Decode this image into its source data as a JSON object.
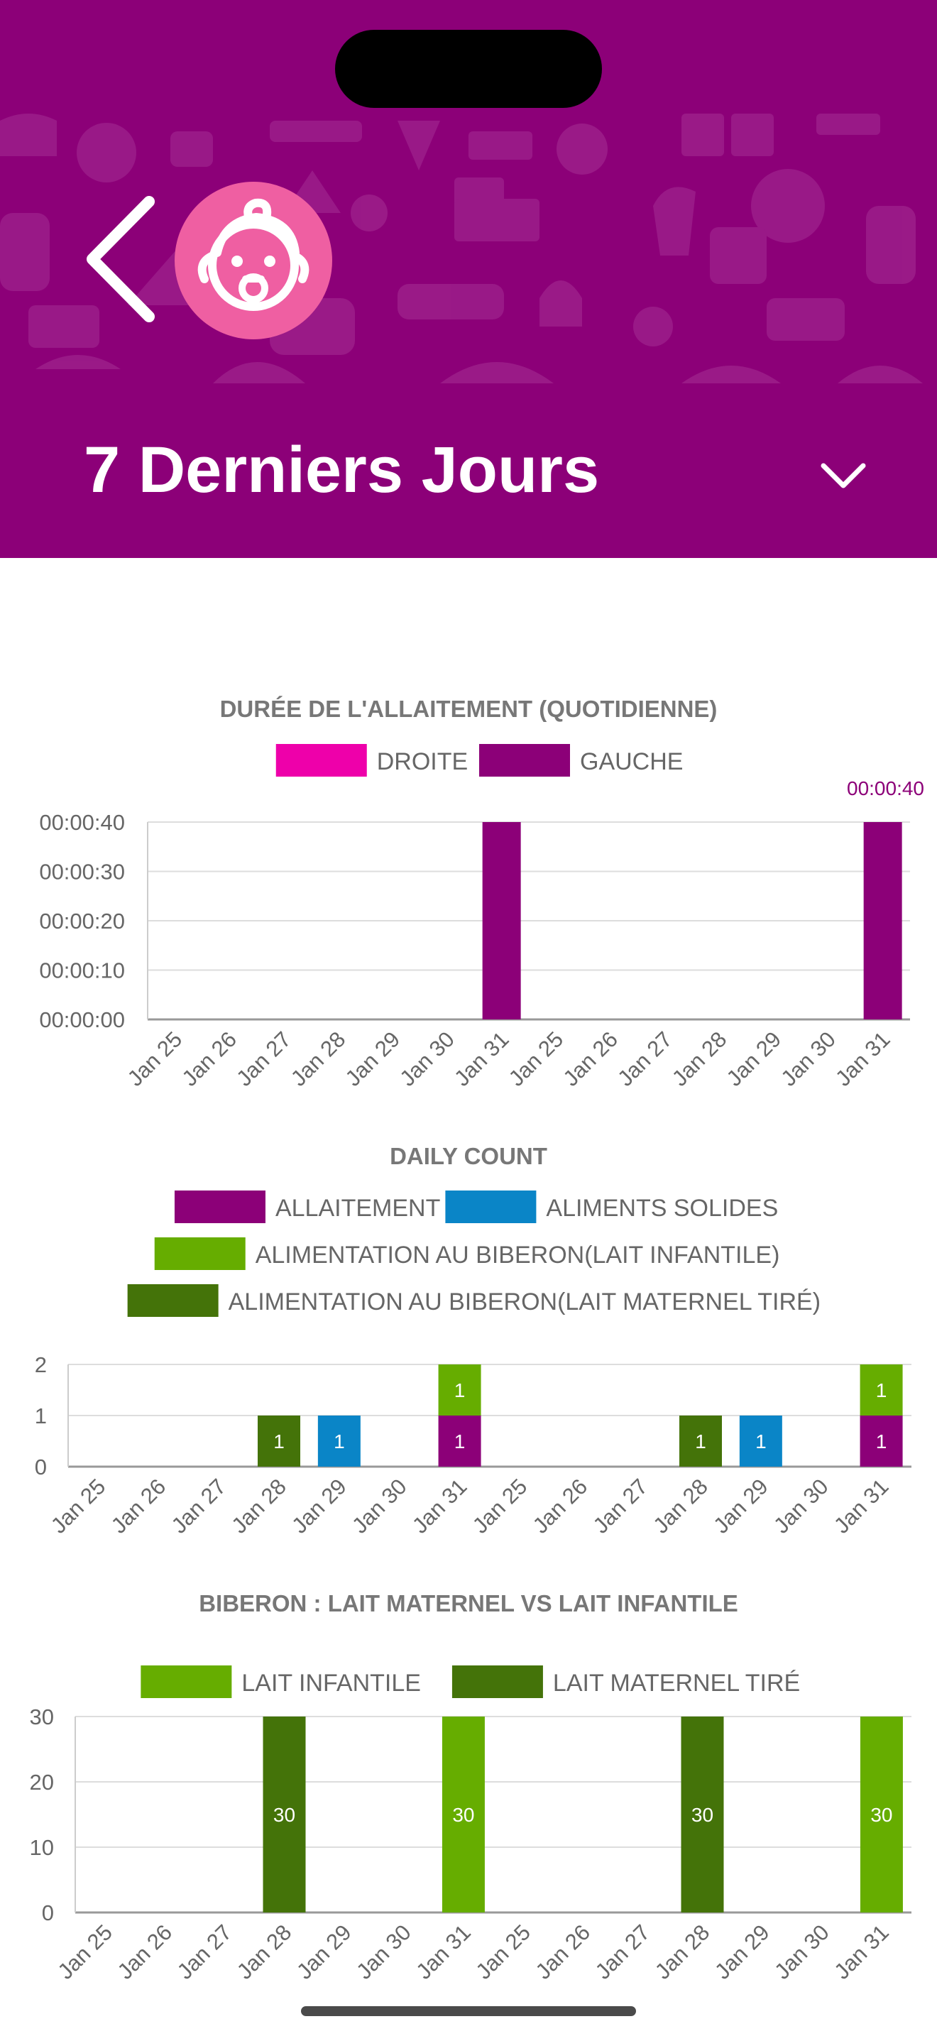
{
  "header": {
    "title": "7 Derniers Jours",
    "back_icon": "chevron-left-icon",
    "avatar_icon": "baby-face-icon",
    "dropdown_icon": "chevron-down-icon",
    "background_color": "#8c0078",
    "avatar_color": "#ef5fa2"
  },
  "charts": [
    {
      "title": "DURÉE DE L'ALLAITEMENT (QUOTIDIENNE)",
      "tooltip": "00:00:40"
    },
    {
      "title": "DAILY COUNT"
    },
    {
      "title": "BIBERON : LAIT MATERNEL VS LAIT INFANTILE"
    }
  ],
  "chart_data": [
    {
      "type": "bar",
      "title": "DURÉE DE L'ALLAITEMENT (QUOTIDIENNE)",
      "categories": [
        "Jan 25",
        "Jan 26",
        "Jan 27",
        "Jan 28",
        "Jan 29",
        "Jan 30",
        "Jan 31",
        "Jan 25",
        "Jan 26",
        "Jan 27",
        "Jan 28",
        "Jan 29",
        "Jan 30",
        "Jan 31"
      ],
      "series": [
        {
          "name": "DROITE",
          "color": "#ee00aa",
          "values": [
            0,
            0,
            0,
            0,
            0,
            0,
            0,
            0,
            0,
            0,
            0,
            0,
            0,
            0
          ]
        },
        {
          "name": "GAUCHE",
          "color": "#8c0078",
          "values": [
            0,
            0,
            0,
            0,
            0,
            0,
            40,
            0,
            0,
            0,
            0,
            0,
            0,
            40
          ]
        }
      ],
      "y_ticks": [
        "00:00:00",
        "00:00:10",
        "00:00:20",
        "00:00:30",
        "00:00:40"
      ],
      "ylim": [
        0,
        40
      ],
      "y_unit": "seconds",
      "legend": "top",
      "grid": true,
      "tooltip": "00:00:40"
    },
    {
      "type": "bar",
      "title": "DAILY COUNT",
      "stacked": true,
      "categories": [
        "Jan 25",
        "Jan 26",
        "Jan 27",
        "Jan 28",
        "Jan 29",
        "Jan 30",
        "Jan 31",
        "Jan 25",
        "Jan 26",
        "Jan 27",
        "Jan 28",
        "Jan 29",
        "Jan 30",
        "Jan 31"
      ],
      "series": [
        {
          "name": "ALLAITEMENT",
          "color": "#8c0078",
          "values": [
            0,
            0,
            0,
            0,
            0,
            0,
            1,
            0,
            0,
            0,
            0,
            0,
            0,
            1
          ]
        },
        {
          "name": "ALIMENTS SOLIDES",
          "color": "#0a85c7",
          "values": [
            0,
            0,
            0,
            0,
            1,
            0,
            0,
            0,
            0,
            0,
            0,
            1,
            0,
            0
          ]
        },
        {
          "name": "ALIMENTATION AU BIBERON(LAIT INFANTILE)",
          "color": "#66ad00",
          "values": [
            0,
            0,
            0,
            0,
            0,
            0,
            1,
            0,
            0,
            0,
            0,
            0,
            0,
            1
          ]
        },
        {
          "name": "ALIMENTATION AU BIBERON(LAIT MATERNEL TIRÉ)",
          "color": "#447309",
          "values": [
            0,
            0,
            0,
            1,
            0,
            0,
            0,
            0,
            0,
            0,
            1,
            0,
            0,
            0
          ]
        }
      ],
      "y_ticks": [
        "0",
        "1",
        "2"
      ],
      "ylim": [
        0,
        2
      ],
      "legend": "top",
      "grid": true
    },
    {
      "type": "bar",
      "title": "BIBERON : LAIT MATERNEL VS LAIT INFANTILE",
      "stacked": true,
      "categories": [
        "Jan 25",
        "Jan 26",
        "Jan 27",
        "Jan 28",
        "Jan 29",
        "Jan 30",
        "Jan 31",
        "Jan 25",
        "Jan 26",
        "Jan 27",
        "Jan 28",
        "Jan 29",
        "Jan 30",
        "Jan 31"
      ],
      "series": [
        {
          "name": "LAIT INFANTILE",
          "color": "#66ad00",
          "values": [
            0,
            0,
            0,
            0,
            0,
            0,
            30,
            0,
            0,
            0,
            0,
            0,
            0,
            30
          ]
        },
        {
          "name": "LAIT MATERNEL TIRÉ",
          "color": "#447309",
          "values": [
            0,
            0,
            0,
            30,
            0,
            0,
            0,
            0,
            0,
            0,
            30,
            0,
            0,
            0
          ]
        }
      ],
      "y_ticks": [
        "0",
        "10",
        "20",
        "30"
      ],
      "ylim": [
        0,
        30
      ],
      "legend": "top",
      "grid": true
    }
  ]
}
